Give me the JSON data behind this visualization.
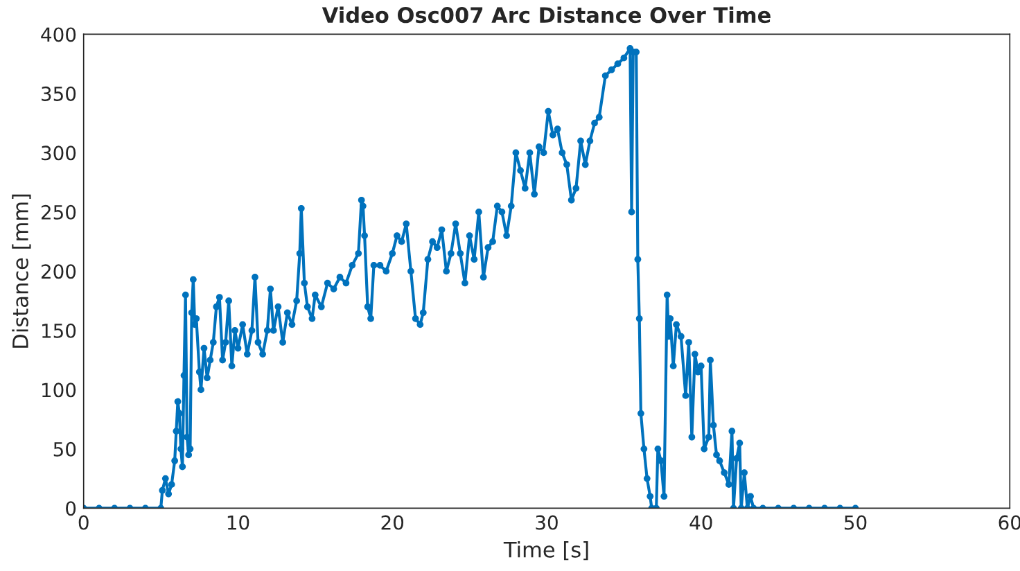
{
  "chart_data": {
    "type": "line",
    "title": "Video Osc007 Arc Distance Over Time",
    "xlabel": "Time [s]",
    "ylabel": "Distance [mm]",
    "xlim": [
      0,
      60
    ],
    "xticks": [
      0,
      10,
      20,
      30,
      40,
      50,
      60
    ],
    "ylim": [
      0,
      400
    ],
    "yticks": [
      0,
      50,
      100,
      150,
      200,
      250,
      300,
      350,
      400
    ],
    "grid": false,
    "marker": "circle",
    "line_style": "solid",
    "series": [
      {
        "color": "#0072bd",
        "x": [
          0,
          1,
          2,
          3,
          4,
          5,
          5.1,
          5.3,
          5.5,
          5.7,
          5.9,
          6.0,
          6.1,
          6.2,
          6.3,
          6.4,
          6.5,
          6.6,
          6.7,
          6.8,
          6.9,
          7.0,
          7.1,
          7.2,
          7.3,
          7.5,
          7.6,
          7.8,
          8.0,
          8.2,
          8.4,
          8.6,
          8.8,
          9.0,
          9.2,
          9.4,
          9.6,
          9.8,
          10.0,
          10.3,
          10.6,
          10.9,
          11.1,
          11.3,
          11.6,
          11.9,
          12.1,
          12.3,
          12.6,
          12.9,
          13.2,
          13.5,
          13.8,
          14.0,
          14.1,
          14.3,
          14.5,
          14.8,
          15.0,
          15.4,
          15.8,
          16.2,
          16.6,
          17.0,
          17.4,
          17.8,
          18.0,
          18.1,
          18.2,
          18.4,
          18.6,
          18.8,
          19.2,
          19.6,
          20.0,
          20.3,
          20.6,
          20.9,
          21.2,
          21.5,
          21.8,
          22.0,
          22.3,
          22.6,
          22.9,
          23.2,
          23.5,
          23.8,
          24.1,
          24.4,
          24.7,
          25.0,
          25.3,
          25.6,
          25.9,
          26.2,
          26.5,
          26.8,
          27.1,
          27.4,
          27.7,
          28.0,
          28.3,
          28.6,
          28.9,
          29.2,
          29.5,
          29.8,
          30.1,
          30.4,
          30.7,
          31.0,
          31.3,
          31.6,
          31.9,
          32.2,
          32.5,
          32.8,
          33.1,
          33.4,
          33.8,
          34.2,
          34.6,
          35.0,
          35.4,
          35.5,
          35.6,
          35.8,
          35.9,
          36.0,
          36.1,
          36.3,
          36.5,
          36.7,
          36.8,
          37.1,
          37.2,
          37.4,
          37.6,
          37.8,
          37.9,
          38.0,
          38.2,
          38.4,
          38.7,
          39.0,
          39.2,
          39.4,
          39.6,
          39.8,
          40.0,
          40.2,
          40.5,
          40.6,
          40.8,
          41.0,
          41.2,
          41.5,
          41.8,
          42.0,
          42.1,
          42.3,
          42.5,
          42.6,
          42.8,
          43.0,
          43.2,
          43.4,
          44,
          45,
          46,
          47,
          48,
          49,
          50
        ],
        "values": [
          0,
          0,
          0,
          0,
          0,
          0,
          15,
          25,
          12,
          20,
          40,
          65,
          90,
          80,
          50,
          35,
          112,
          180,
          60,
          45,
          50,
          165,
          193,
          155,
          160,
          115,
          100,
          135,
          110,
          125,
          140,
          170,
          178,
          125,
          140,
          175,
          120,
          150,
          135,
          155,
          130,
          150,
          195,
          140,
          130,
          150,
          185,
          150,
          170,
          140,
          165,
          155,
          175,
          215,
          253,
          190,
          170,
          160,
          180,
          170,
          190,
          185,
          195,
          190,
          205,
          215,
          260,
          255,
          230,
          170,
          160,
          205,
          205,
          200,
          215,
          230,
          225,
          240,
          200,
          160,
          155,
          165,
          210,
          225,
          220,
          235,
          200,
          215,
          240,
          215,
          190,
          230,
          210,
          250,
          195,
          220,
          225,
          255,
          250,
          230,
          255,
          300,
          285,
          270,
          300,
          265,
          305,
          300,
          335,
          315,
          320,
          300,
          290,
          260,
          270,
          310,
          290,
          310,
          325,
          330,
          365,
          370,
          375,
          380,
          388,
          250,
          385,
          385,
          210,
          160,
          80,
          50,
          25,
          10,
          0,
          0,
          50,
          40,
          10,
          180,
          145,
          160,
          120,
          155,
          145,
          95,
          140,
          60,
          130,
          115,
          120,
          50,
          60,
          125,
          70,
          45,
          40,
          30,
          20,
          65,
          0,
          42,
          55,
          0,
          30,
          0,
          10,
          0,
          0,
          0,
          0,
          0,
          0,
          0,
          0
        ]
      }
    ]
  }
}
